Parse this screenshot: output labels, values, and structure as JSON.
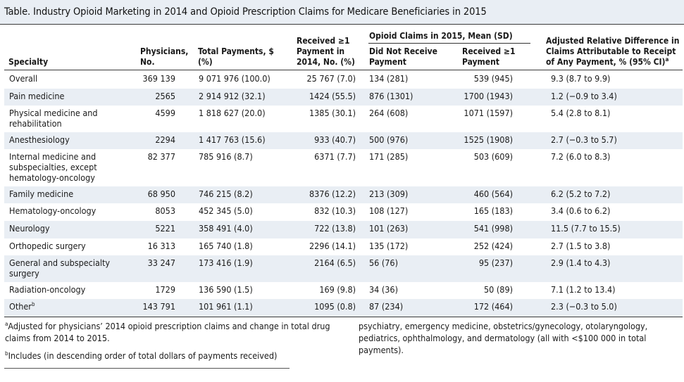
{
  "title": "Table. Industry Opioid Marketing in 2014 and Opioid Prescription Claims for Medicare Beneficiaries in 2015",
  "headers": {
    "specialty": "Specialty",
    "physicians": [
      "Physicians,",
      "No."
    ],
    "total_payments": [
      "Total Payments, $",
      "(%)"
    ],
    "received": [
      "Received ≥1",
      "Payment in",
      "2014, No. (%)"
    ],
    "claims_group": "Opioid Claims in 2015, Mean (SD)",
    "did_not_receive": [
      "Did Not Receive",
      "Payment"
    ],
    "received_payment": [
      "Received ≥1",
      "Payment"
    ],
    "adjusted": [
      "Adjusted Relative Difference in",
      "Claims Attributable to Receipt",
      "of Any Payment, % (95% CI)"
    ],
    "adjusted_sup": "a"
  },
  "rows": [
    {
      "specialty": [
        "Overall"
      ],
      "physicians": "369 139",
      "total": "9 071 976 (100.0)",
      "received": "25 767 (7.0)",
      "not_recv": "134 (281)",
      "recv": "539 (945)",
      "adj": "9.3 (8.7 to 9.9)"
    },
    {
      "specialty": [
        "Pain medicine"
      ],
      "physicians": "2565",
      "total": "2 914 912 (32.1)",
      "received": "1424 (55.5)",
      "not_recv": "876 (1301)",
      "recv": "1700 (1943)",
      "adj": "1.2 (−0.9 to 3.4)"
    },
    {
      "specialty": [
        "Physical medicine and",
        "rehabilitation"
      ],
      "physicians": "4599",
      "total": "1 818 627 (20.0)",
      "received": "1385 (30.1)",
      "not_recv": "264 (608)",
      "recv": "1071 (1597)",
      "adj": "5.4 (2.8 to 8.1)"
    },
    {
      "specialty": [
        "Anesthesiology"
      ],
      "physicians": "2294",
      "total": "1 417 763 (15.6)",
      "received": "933 (40.7)",
      "not_recv": "500 (976)",
      "recv": "1525 (1908)",
      "adj": "2.7 (−0.3 to 5.7)"
    },
    {
      "specialty": [
        "Internal medicine and",
        "subspecialties, except",
        "hematology-oncology"
      ],
      "physicians": "82 377",
      "total": "785 916 (8.7)",
      "received": "6371 (7.7)",
      "not_recv": "171 (285)",
      "recv": "503 (609)",
      "adj": "7.2 (6.0 to 8.3)"
    },
    {
      "specialty": [
        "Family medicine"
      ],
      "physicians": "68 950",
      "total": "746 215 (8.2)",
      "received": "8376 (12.2)",
      "not_recv": "213 (309)",
      "recv": "460 (564)",
      "adj": "6.2 (5.2 to 7.2)"
    },
    {
      "specialty": [
        "Hematology-oncology"
      ],
      "physicians": "8053",
      "total": "452 345 (5.0)",
      "received": "832 (10.3)",
      "not_recv": "108 (127)",
      "recv": "165 (183)",
      "adj": "3.4 (0.6 to 6.2)"
    },
    {
      "specialty": [
        "Neurology"
      ],
      "physicians": "5221",
      "total": "358 491 (4.0)",
      "received": "722 (13.8)",
      "not_recv": "101 (263)",
      "recv": "541 (998)",
      "adj": "11.5 (7.7 to 15.5)"
    },
    {
      "specialty": [
        "Orthopedic surgery"
      ],
      "physicians": "16 313",
      "total": "165 740 (1.8)",
      "received": "2296 (14.1)",
      "not_recv": "135 (172)",
      "recv": "252 (424)",
      "adj": "2.7 (1.5 to 3.8)"
    },
    {
      "specialty": [
        "General and subspecialty",
        "surgery"
      ],
      "physicians": "33 247",
      "total": "173 416 (1.9)",
      "received": "2164 (6.5)",
      "not_recv": "56 (76)",
      "recv": "95 (237)",
      "adj": "2.9 (1.4 to 4.3)"
    },
    {
      "specialty": [
        "Radiation-oncology"
      ],
      "physicians": "1729",
      "total": "136 590 (1.5)",
      "received": "169 (9.8)",
      "not_recv": "34 (36)",
      "recv": "50 (89)",
      "adj": "7.1 (1.2 to 13.4)"
    },
    {
      "specialty": [
        "Other"
      ],
      "specialty_sup": "b",
      "physicians": "143 791",
      "total": "101 961 (1.1)",
      "received": "1095 (0.8)",
      "not_recv": "87 (234)",
      "recv": "172 (464)",
      "adj": "2.3 (−0.3 to 5.0)"
    }
  ],
  "footnotes": {
    "a_mark": "a",
    "a_text": "Adjusted for physicians’ 2014 opioid prescription claims and change in total drug claims from 2014 to 2015.",
    "b_mark": "b",
    "b_text": "Includes (in descending order of total dollars of payments received)",
    "b_continued": "psychiatry, emergency medicine, obstetrics/gynecology, otolaryngology, pediatrics, ophthalmology, and dermatology (all with <$100 000 in total payments)."
  },
  "colors": {
    "header_band": "#e9eef4",
    "row_shade": "#e9eef4",
    "rule": "#3a3a3a"
  }
}
